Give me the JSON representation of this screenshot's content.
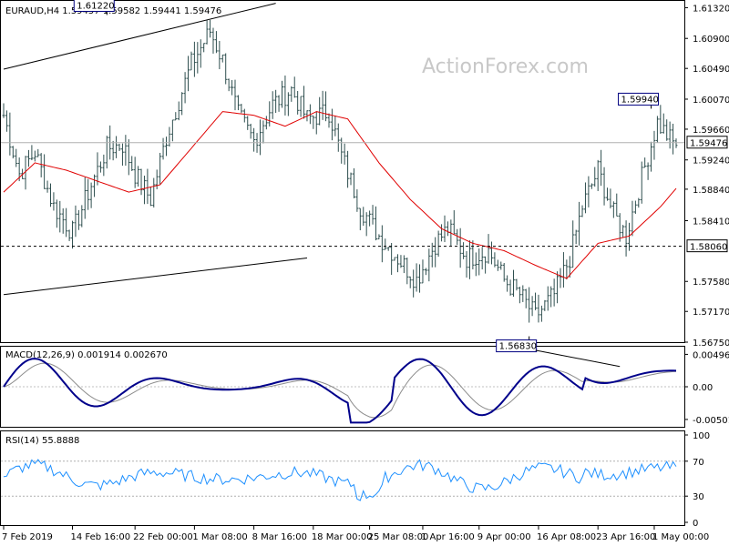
{
  "chart_data": {
    "type": "candlestick",
    "symbol_header": "EURAUD,H4  1.59457 1.59582 1.59441 1.59476",
    "watermark": "ActionForex.com",
    "colors": {
      "price": "#2f4f4f",
      "moving_average": "#e00000",
      "macd_line": "#00008b",
      "macd_signal": "#8c8c8c",
      "rsi": "#1e90ff",
      "trendline": "#000000",
      "level_line": "#000000"
    },
    "price_panel": {
      "ylim": [
        1.5675,
        1.614
      ],
      "y_tick_labels": [
        "1.61320",
        "1.60900",
        "1.60490",
        "1.60070",
        "1.59660",
        "1.59240",
        "1.58840",
        "1.58410",
        "1.57580",
        "1.57170",
        "1.56750"
      ],
      "y_tick_values": [
        1.6132,
        1.609,
        1.6049,
        1.6007,
        1.5966,
        1.5924,
        1.5884,
        1.5841,
        1.5758,
        1.5717,
        1.5675
      ],
      "current_price_label": "1.59476",
      "current_price": 1.59476,
      "level_label": "1.58060",
      "level": 1.5806,
      "annotations": [
        {
          "text": "1.61220",
          "value": 1.6122,
          "bar": 33
        },
        {
          "text": "1.59940",
          "value": 1.5994,
          "bar": 207
        },
        {
          "text": "1.56830",
          "value": 1.5683,
          "bar": 168
        }
      ],
      "anchor_closes": [
        [
          0,
          1.5985
        ],
        [
          5,
          1.5905
        ],
        [
          10,
          1.5935
        ],
        [
          16,
          1.586
        ],
        [
          22,
          1.5825
        ],
        [
          28,
          1.589
        ],
        [
          33,
          1.594
        ],
        [
          38,
          1.5945
        ],
        [
          42,
          1.5905
        ],
        [
          47,
          1.587
        ],
        [
          52,
          1.5955
        ],
        [
          60,
          1.6055
        ],
        [
          66,
          1.61
        ],
        [
          70,
          1.606
        ],
        [
          75,
          1.5985
        ],
        [
          80,
          1.595
        ],
        [
          86,
          1.6
        ],
        [
          92,
          1.602
        ],
        [
          97,
          1.598
        ],
        [
          104,
          1.599
        ],
        [
          108,
          1.593
        ],
        [
          114,
          1.586
        ],
        [
          120,
          1.582
        ],
        [
          126,
          1.579
        ],
        [
          132,
          1.576
        ],
        [
          138,
          1.581
        ],
        [
          142,
          1.583
        ],
        [
          148,
          1.579
        ],
        [
          155,
          1.58
        ],
        [
          160,
          1.576
        ],
        [
          165,
          1.574
        ],
        [
          170,
          1.571
        ],
        [
          176,
          1.574
        ],
        [
          181,
          1.579
        ],
        [
          185,
          1.586
        ],
        [
          190,
          1.591
        ],
        [
          195,
          1.585
        ],
        [
          199,
          1.582
        ],
        [
          204,
          1.59
        ],
        [
          209,
          1.5975
        ],
        [
          214,
          1.5947
        ]
      ],
      "moving_average_points": [
        [
          0,
          1.588
        ],
        [
          10,
          1.592
        ],
        [
          20,
          1.591
        ],
        [
          30,
          1.5895
        ],
        [
          40,
          1.588
        ],
        [
          50,
          1.589
        ],
        [
          60,
          1.594
        ],
        [
          70,
          1.599
        ],
        [
          80,
          1.5985
        ],
        [
          90,
          1.597
        ],
        [
          100,
          1.599
        ],
        [
          110,
          1.598
        ],
        [
          120,
          1.592
        ],
        [
          130,
          1.587
        ],
        [
          140,
          1.583
        ],
        [
          150,
          1.581
        ],
        [
          160,
          1.58
        ],
        [
          170,
          1.578
        ],
        [
          180,
          1.5762
        ],
        [
          190,
          1.581
        ],
        [
          200,
          1.582
        ],
        [
          210,
          1.586
        ],
        [
          216,
          1.589
        ]
      ],
      "trendlines": [
        {
          "from": [
            0,
            1.6048
          ],
          "to": [
            87,
            1.6138
          ]
        },
        {
          "from": [
            0,
            1.574
          ],
          "to": [
            97,
            1.579
          ]
        }
      ]
    },
    "macd_panel": {
      "label": "MACD(12,26,9) 0.001914 0.002670",
      "y_tick_labels": [
        "0.004965",
        "0.00",
        "-0.005013"
      ],
      "y_tick_values": [
        0.004965,
        0,
        -0.005013
      ],
      "ylim": [
        -0.006,
        0.006
      ],
      "trendline": {
        "from": [
          170,
          0.0056
        ],
        "to": [
          197,
          0.0031
        ]
      }
    },
    "rsi_panel": {
      "label": "RSI(14) 55.8888",
      "y_tick_labels": [
        "100",
        "70",
        "30",
        "0"
      ],
      "y_tick_values": [
        100,
        70,
        30,
        0
      ],
      "levels": [
        70,
        30
      ],
      "ylim": [
        0,
        100
      ]
    },
    "x_axis": {
      "tick_labels": [
        "7 Feb 2019",
        "14 Feb 16:00",
        "22 Feb 00:00",
        "1 Mar 08:00",
        "8 Mar 16:00",
        "18 Mar 00:00",
        "25 Mar 08:00",
        "1 Apr 16:00",
        "9 Apr 00:00",
        "16 Apr 08:00",
        "23 Apr 16:00",
        "1 May 00:00"
      ],
      "tick_bars": [
        0,
        22,
        42,
        61,
        80,
        99,
        117,
        134,
        152,
        171,
        190,
        208
      ],
      "bar_count": 216
    },
    "grid": false
  }
}
